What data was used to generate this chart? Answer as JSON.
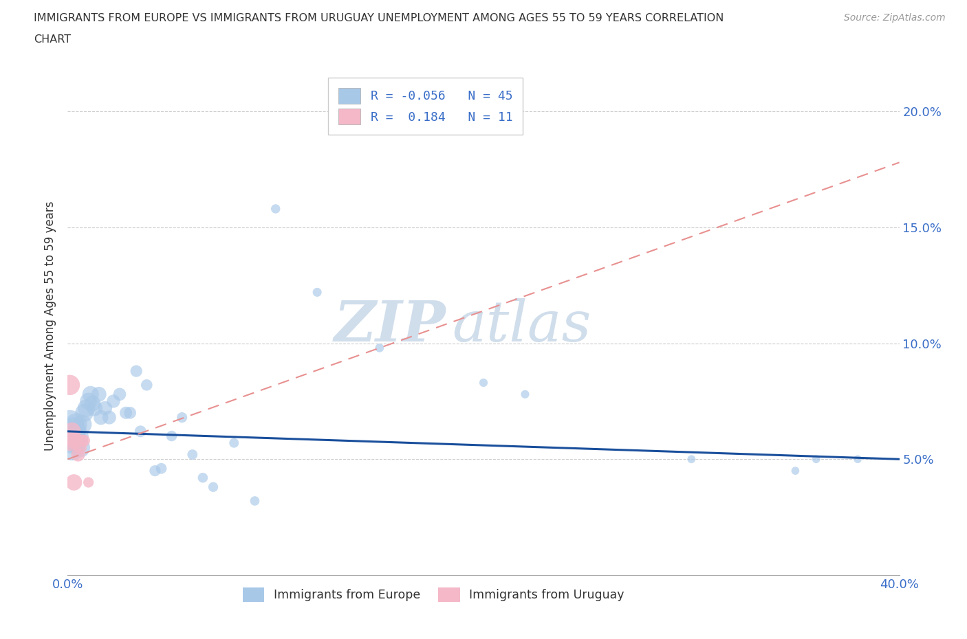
{
  "title_line1": "IMMIGRANTS FROM EUROPE VS IMMIGRANTS FROM URUGUAY UNEMPLOYMENT AMONG AGES 55 TO 59 YEARS CORRELATION",
  "title_line2": "CHART",
  "source": "Source: ZipAtlas.com",
  "ylabel": "Unemployment Among Ages 55 to 59 years",
  "xlim": [
    0.0,
    0.4
  ],
  "ylim": [
    0.0,
    0.215
  ],
  "europe_R": "-0.056",
  "europe_N": "45",
  "uruguay_R": "0.184",
  "uruguay_N": "11",
  "europe_color": "#a8c8e8",
  "uruguay_color": "#f4b8c8",
  "europe_line_color": "#1a4f9c",
  "uruguay_line_color": "#e89090",
  "grid_color": "#cccccc",
  "background_color": "#ffffff",
  "text_color": "#333333",
  "blue_label_color": "#3a6ec8",
  "source_color": "#999999",
  "watermark_color": "#d0dce8",
  "europe_x": [
    0.001,
    0.001,
    0.002,
    0.002,
    0.003,
    0.003,
    0.004,
    0.005,
    0.006,
    0.007,
    0.008,
    0.009,
    0.01,
    0.011,
    0.012,
    0.013,
    0.015,
    0.016,
    0.018,
    0.02,
    0.022,
    0.025,
    0.028,
    0.03,
    0.033,
    0.035,
    0.038,
    0.042,
    0.045,
    0.05,
    0.055,
    0.06,
    0.065,
    0.07,
    0.08,
    0.09,
    0.1,
    0.12,
    0.15,
    0.2,
    0.22,
    0.3,
    0.35,
    0.36,
    0.38
  ],
  "europe_y": [
    0.06,
    0.065,
    0.055,
    0.058,
    0.06,
    0.063,
    0.065,
    0.06,
    0.055,
    0.065,
    0.07,
    0.072,
    0.075,
    0.078,
    0.074,
    0.072,
    0.078,
    0.068,
    0.072,
    0.068,
    0.075,
    0.078,
    0.07,
    0.07,
    0.088,
    0.062,
    0.082,
    0.045,
    0.046,
    0.06,
    0.068,
    0.052,
    0.042,
    0.038,
    0.057,
    0.032,
    0.158,
    0.122,
    0.098,
    0.083,
    0.078,
    0.05,
    0.045,
    0.05,
    0.05
  ],
  "uruguay_x": [
    0.001,
    0.001,
    0.002,
    0.003,
    0.003,
    0.004,
    0.005,
    0.006,
    0.007,
    0.008,
    0.01
  ],
  "uruguay_y": [
    0.082,
    0.058,
    0.062,
    0.058,
    0.04,
    0.058,
    0.052,
    0.055,
    0.058,
    0.058,
    0.04
  ],
  "europe_trend_x": [
    0.0,
    0.4
  ],
  "europe_trend_y": [
    0.062,
    0.05
  ],
  "uruguay_trend_x": [
    0.0,
    0.4
  ],
  "uruguay_trend_y": [
    0.05,
    0.178
  ],
  "xtick_positions": [
    0.0,
    0.05,
    0.1,
    0.15,
    0.2,
    0.25,
    0.3,
    0.35,
    0.4
  ],
  "xtick_labels": [
    "0.0%",
    "",
    "",
    "",
    "",
    "",
    "",
    "",
    "40.0%"
  ],
  "ytick_positions": [
    0.0,
    0.05,
    0.1,
    0.15,
    0.2
  ],
  "right_ytick_labels": [
    "",
    "5.0%",
    "10.0%",
    "15.0%",
    "20.0%"
  ]
}
